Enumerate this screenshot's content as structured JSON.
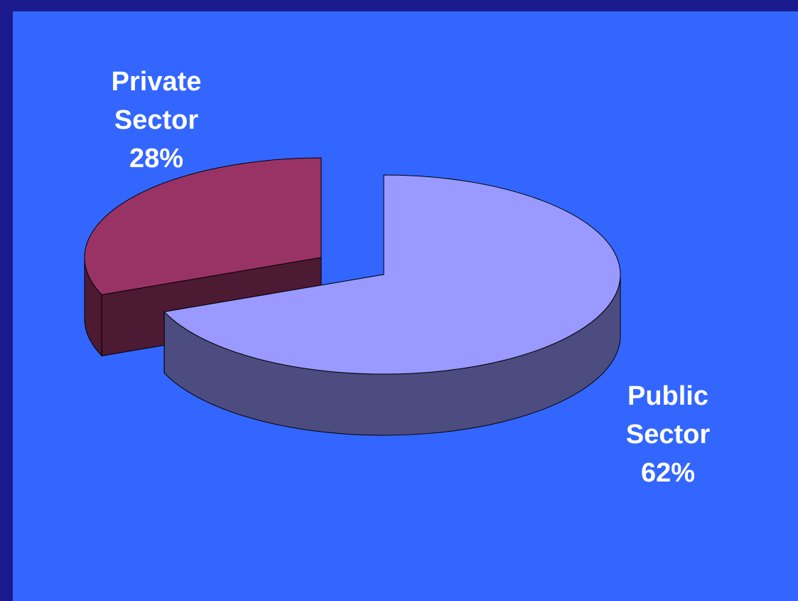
{
  "chart_data": {
    "type": "pie",
    "title": "",
    "slices": [
      {
        "label_lines": [
          "Private",
          "Sector"
        ],
        "value": 28,
        "value_text": "28%",
        "color": "#993366",
        "side_color": "#4d1a33"
      },
      {
        "label_lines": [
          "Public",
          "Sector"
        ],
        "value": 62,
        "value_text": "62%",
        "color": "#9999ff",
        "side_color": "#4c4c80"
      }
    ],
    "three_d": true,
    "exploded": true
  },
  "colors": {
    "frame": "#1a1a8c",
    "background": "#3366ff",
    "label_text": "#ffffff"
  }
}
